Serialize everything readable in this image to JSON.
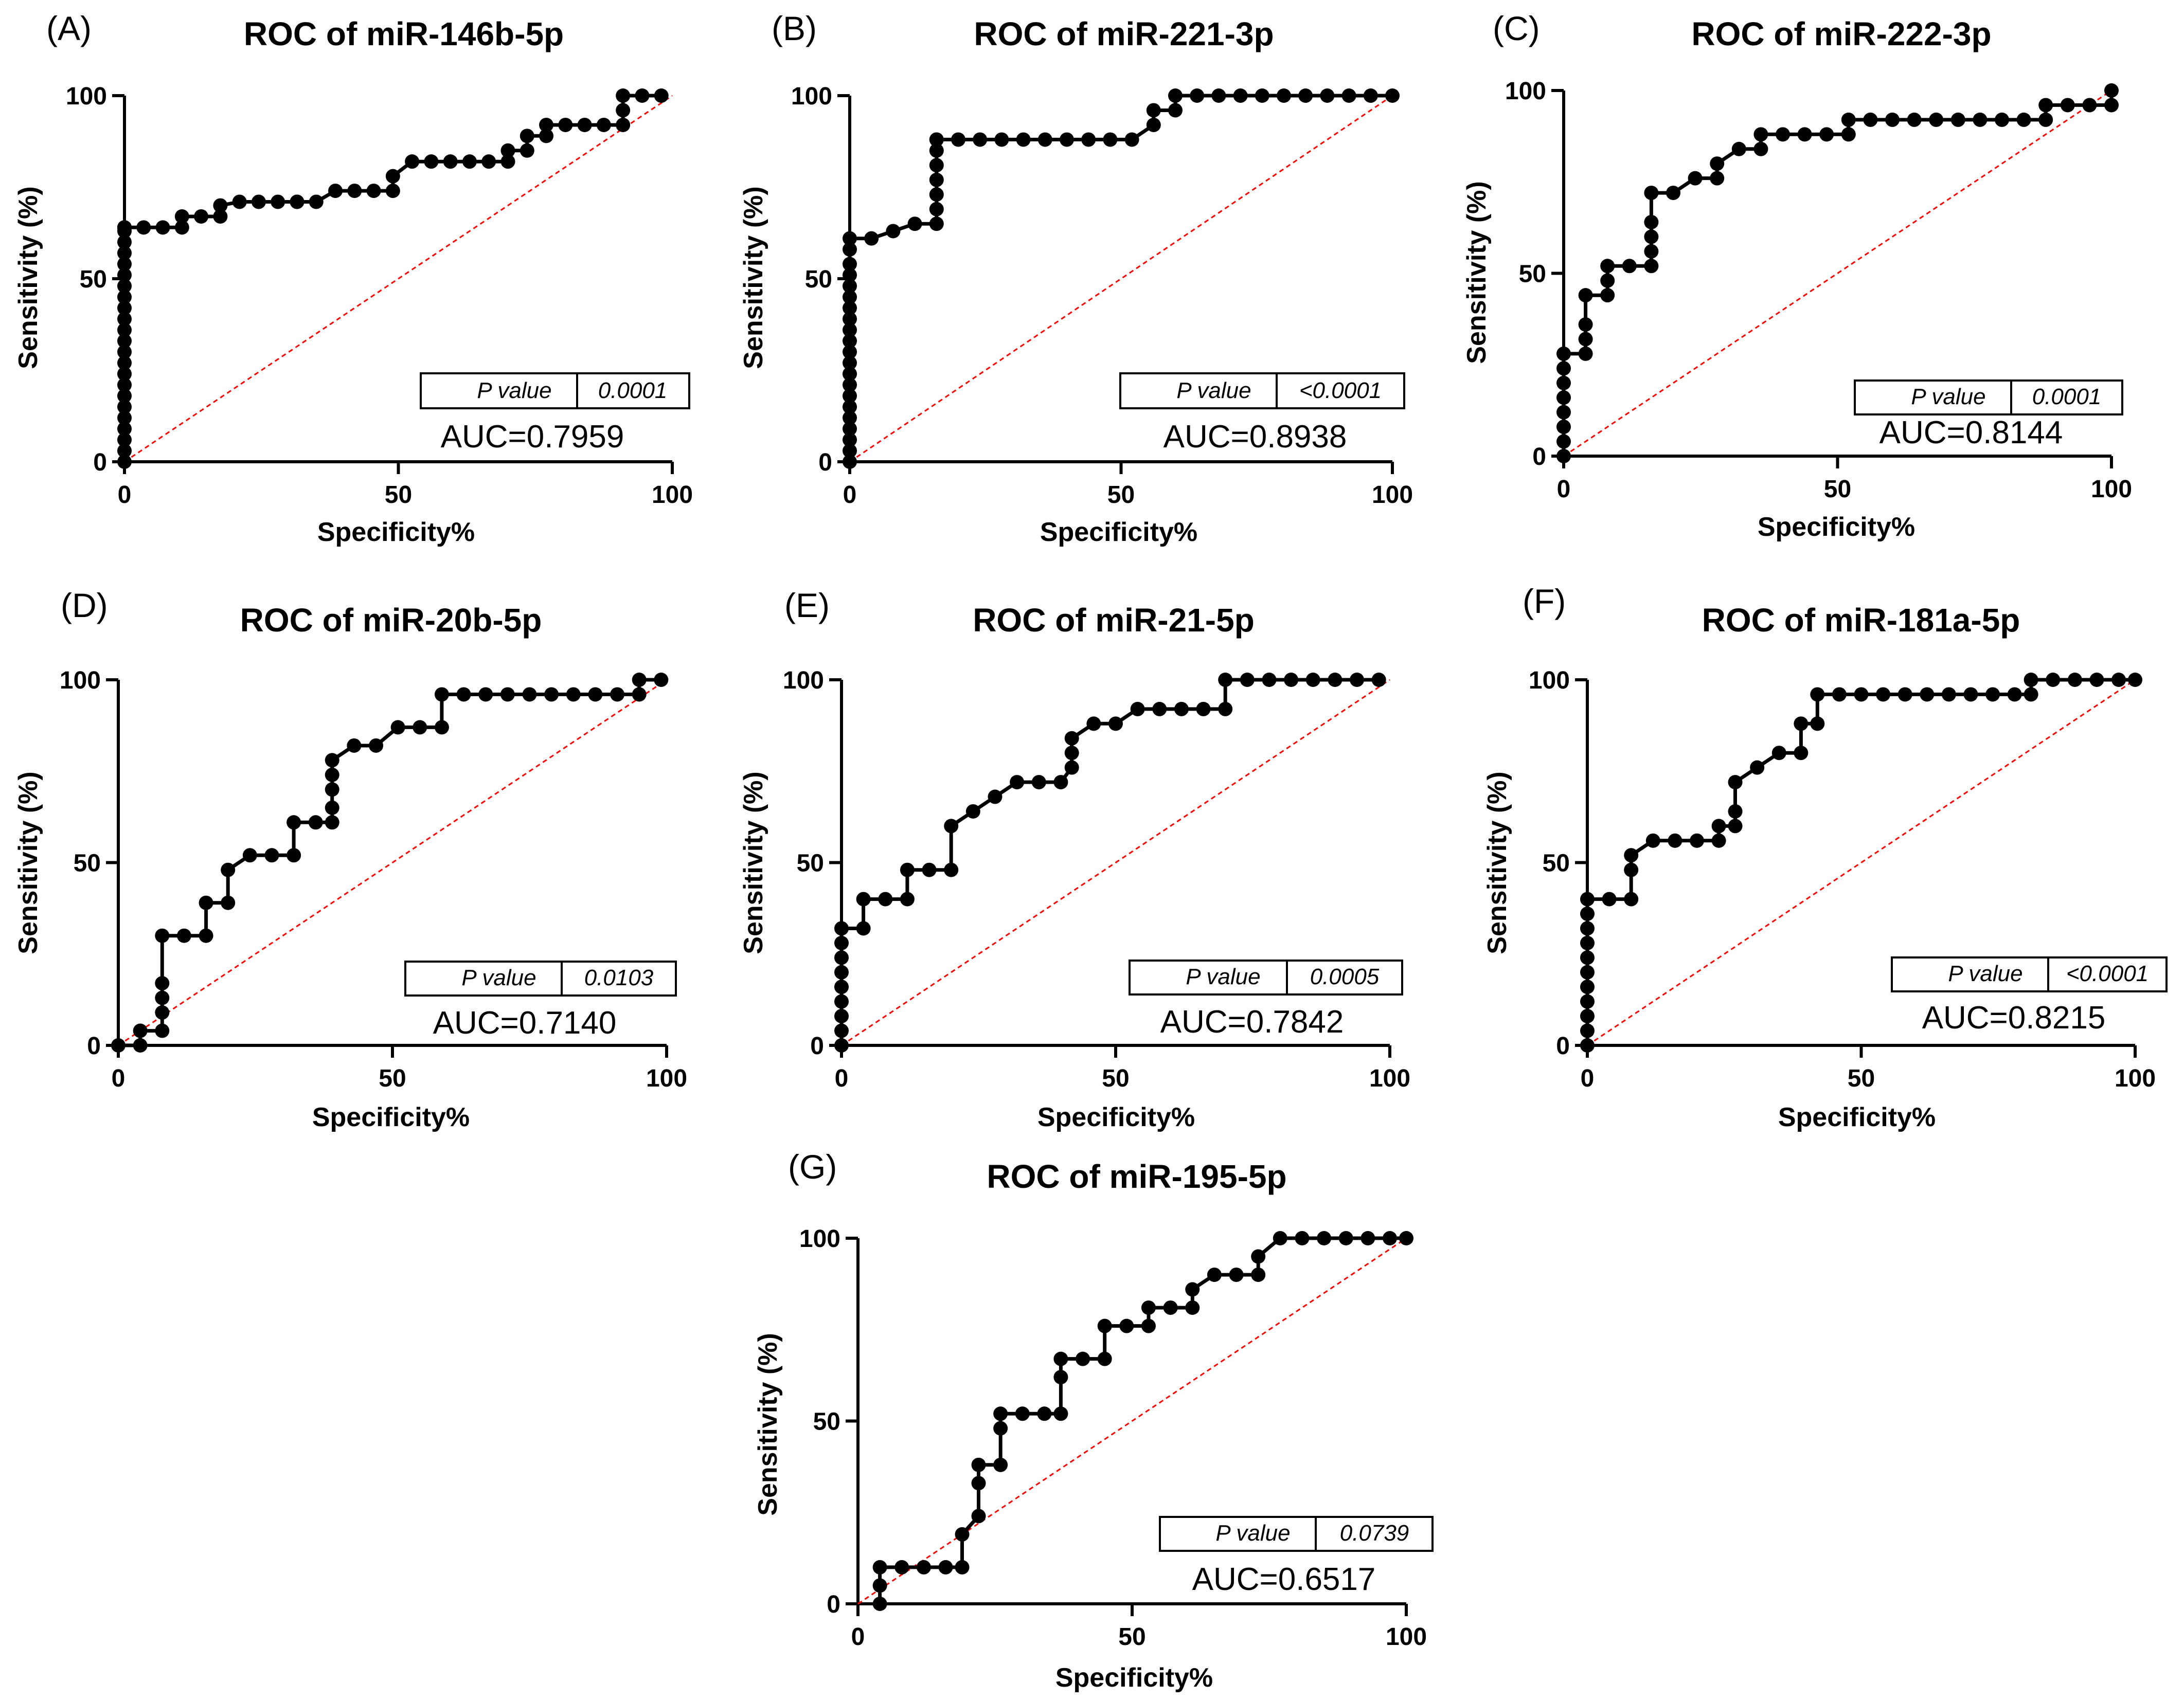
{
  "figure": {
    "background": "#ffffff",
    "point_color": "#000000",
    "diagonal_color": "#ff0000"
  },
  "chart_data": [
    {
      "id": "A",
      "type": "line",
      "panel_label": "(A)",
      "title": "ROC of miR-146b-5p",
      "xlabel": "Specificity%",
      "ylabel": "Sensitivity (%)",
      "xlim": [
        0,
        100
      ],
      "ylim": [
        0,
        100
      ],
      "xticks": [
        "0",
        "50",
        "100"
      ],
      "yticks": [
        "0",
        "50",
        "100"
      ],
      "p_value_label": "P value",
      "p_value": "0.0001",
      "auc": "AUC=0.7959",
      "series": [
        {
          "name": "ROC",
          "x": [
            0,
            0,
            0,
            0,
            0,
            0,
            0,
            0,
            0,
            0,
            0,
            0,
            0,
            0,
            0,
            0,
            0,
            0,
            0,
            0,
            0,
            0,
            0,
            0,
            0,
            0,
            0,
            3.5,
            7,
            10.5,
            10.5,
            14,
            17.5,
            17.5,
            21,
            24.5,
            28,
            31.5,
            31.5,
            35,
            38.5,
            42,
            45.5,
            49,
            49,
            52.5,
            56,
            59.5,
            63,
            66.5,
            70,
            70,
            73.5,
            73.5,
            77,
            77,
            80.5,
            84,
            87.5,
            91,
            91,
            91,
            94.5,
            98
          ],
          "y": [
            0,
            3,
            6,
            9,
            12,
            15,
            18,
            21,
            24,
            27,
            30,
            33,
            36,
            39,
            42,
            45,
            48,
            51,
            54,
            57,
            60,
            63,
            64,
            64,
            64,
            64,
            64,
            64,
            64,
            64,
            67,
            67,
            67,
            70,
            71,
            71,
            71,
            71,
            71,
            71,
            74,
            74,
            74,
            74,
            78,
            82,
            82,
            82,
            82,
            82,
            82,
            85,
            85,
            89,
            89,
            92,
            92,
            92,
            92,
            92,
            96,
            100,
            100,
            100
          ]
        }
      ]
    },
    {
      "id": "B",
      "type": "line",
      "panel_label": "(B)",
      "title": "ROC of miR-221-3p",
      "xlabel": "Specificity%",
      "ylabel": "Sensitivity (%)",
      "xlim": [
        0,
        100
      ],
      "ylim": [
        0,
        100
      ],
      "xticks": [
        "0",
        "50",
        "100"
      ],
      "yticks": [
        "0",
        "50",
        "100"
      ],
      "p_value_label": "P value",
      "p_value": "<0.0001",
      "auc": "AUC=0.8938",
      "series": [
        {
          "name": "ROC",
          "x": [
            0,
            0,
            0,
            0,
            0,
            0,
            0,
            0,
            0,
            0,
            0,
            0,
            0,
            0,
            0,
            0,
            0,
            0,
            0,
            0,
            0,
            4,
            8,
            12,
            16,
            16,
            16,
            16,
            16,
            16,
            16,
            16,
            20,
            24,
            28,
            32,
            36,
            40,
            44,
            48,
            52,
            56,
            56,
            60,
            60,
            64,
            68,
            72,
            76,
            80,
            84,
            88,
            92,
            96,
            100
          ],
          "y": [
            0,
            3,
            6,
            9,
            12,
            15,
            18,
            21,
            24,
            27,
            30,
            33,
            36,
            39,
            42,
            45,
            48,
            51,
            54,
            58,
            61,
            61,
            63,
            65,
            65,
            69,
            73,
            77,
            81,
            85,
            88,
            88,
            88,
            88,
            88,
            88,
            88,
            88,
            88,
            88,
            88,
            92,
            96,
            96,
            100,
            100,
            100,
            100,
            100,
            100,
            100,
            100,
            100,
            100,
            100
          ]
        }
      ]
    },
    {
      "id": "C",
      "type": "line",
      "panel_label": "(C)",
      "title": "ROC of miR-222-3p",
      "xlabel": "Specificity%",
      "ylabel": "Sensitivity (%)",
      "xlim": [
        0,
        100
      ],
      "ylim": [
        0,
        100
      ],
      "xticks": [
        "0",
        "50",
        "100"
      ],
      "yticks": [
        "0",
        "50",
        "100"
      ],
      "p_value_label": "P value",
      "p_value": "0.0001",
      "auc": "AUC=0.8144",
      "series": [
        {
          "name": "ROC",
          "x": [
            0,
            0,
            0,
            0,
            0,
            0,
            0,
            0,
            4,
            4,
            4,
            4,
            8,
            8,
            8,
            12,
            16,
            16,
            16,
            16,
            16,
            20,
            24,
            28,
            28,
            32,
            36,
            36,
            40,
            44,
            48,
            52,
            52,
            56,
            60,
            64,
            68,
            72,
            76,
            80,
            84,
            88,
            88,
            92,
            96,
            100,
            100
          ],
          "y": [
            0,
            4,
            8,
            12,
            16,
            20,
            24,
            28,
            28,
            32,
            36,
            44,
            44,
            48,
            52,
            52,
            52,
            56,
            60,
            64,
            72,
            72,
            76,
            76,
            80,
            84,
            84,
            88,
            88,
            88,
            88,
            88,
            92,
            92,
            92,
            92,
            92,
            92,
            92,
            92,
            92,
            92,
            96,
            96,
            96,
            96,
            100
          ]
        }
      ]
    },
    {
      "id": "D",
      "type": "line",
      "panel_label": "(D)",
      "title": "ROC of miR-20b-5p",
      "xlabel": "Specificity%",
      "ylabel": "Sensitivity (%)",
      "xlim": [
        0,
        100
      ],
      "ylim": [
        0,
        100
      ],
      "xticks": [
        "0",
        "50",
        "100"
      ],
      "yticks": [
        "0",
        "50",
        "100"
      ],
      "p_value_label": "P value",
      "p_value": "0.0103",
      "auc": "AUC=0.7140",
      "series": [
        {
          "name": "ROC",
          "x": [
            0,
            4,
            4,
            8,
            8,
            8,
            8,
            8,
            12,
            16,
            16,
            20,
            20,
            24,
            28,
            32,
            32,
            36,
            39,
            39,
            39,
            39,
            39,
            43,
            47,
            51,
            55,
            59,
            59,
            63,
            67,
            71,
            75,
            79,
            83,
            87,
            91,
            95,
            95,
            99
          ],
          "y": [
            0,
            0,
            4,
            4,
            9,
            13,
            17,
            30,
            30,
            30,
            39,
            39,
            48,
            52,
            52,
            52,
            61,
            61,
            61,
            65,
            70,
            74,
            78,
            82,
            82,
            87,
            87,
            87,
            96,
            96,
            96,
            96,
            96,
            96,
            96,
            96,
            96,
            96,
            100,
            100
          ]
        }
      ]
    },
    {
      "id": "E",
      "type": "line",
      "panel_label": "(E)",
      "title": "ROC of miR-21-5p",
      "xlabel": "Specificity%",
      "ylabel": "Sensitivity (%)",
      "xlim": [
        0,
        100
      ],
      "ylim": [
        0,
        100
      ],
      "xticks": [
        "0",
        "50",
        "100"
      ],
      "yticks": [
        "0",
        "50",
        "100"
      ],
      "p_value_label": "P value",
      "p_value": "0.0005",
      "auc": "AUC=0.7842",
      "series": [
        {
          "name": "ROC",
          "x": [
            0,
            0,
            0,
            0,
            0,
            0,
            0,
            0,
            0,
            4,
            4,
            8,
            12,
            12,
            16,
            20,
            20,
            24,
            28,
            32,
            36,
            40,
            42,
            42,
            42,
            46,
            50,
            54,
            58,
            62,
            66,
            70,
            70,
            74,
            78,
            82,
            86,
            90,
            94,
            98
          ],
          "y": [
            0,
            4,
            8,
            12,
            16,
            20,
            24,
            28,
            32,
            32,
            40,
            40,
            40,
            48,
            48,
            48,
            60,
            64,
            68,
            72,
            72,
            72,
            76,
            80,
            84,
            88,
            88,
            92,
            92,
            92,
            92,
            92,
            100,
            100,
            100,
            100,
            100,
            100,
            100,
            100
          ]
        }
      ]
    },
    {
      "id": "F",
      "type": "line",
      "panel_label": "(F)",
      "title": "ROC of miR-181a-5p",
      "xlabel": "Specificity%",
      "ylabel": "Sensitivity (%)",
      "xlim": [
        0,
        100
      ],
      "ylim": [
        0,
        100
      ],
      "xticks": [
        "0",
        "50",
        "100"
      ],
      "yticks": [
        "0",
        "50",
        "100"
      ],
      "p_value_label": "P value",
      "p_value": "<0.0001",
      "auc": "AUC=0.8215",
      "series": [
        {
          "name": "ROC",
          "x": [
            0,
            0,
            0,
            0,
            0,
            0,
            0,
            0,
            0,
            0,
            0,
            4,
            8,
            8,
            8,
            12,
            16,
            20,
            24,
            24,
            27,
            27,
            27,
            31,
            35,
            39,
            39,
            42,
            42,
            46,
            50,
            54,
            58,
            62,
            66,
            70,
            74,
            78,
            81,
            81,
            85,
            89,
            93,
            97,
            100
          ],
          "y": [
            0,
            4,
            8,
            12,
            16,
            20,
            24,
            28,
            32,
            36,
            40,
            40,
            40,
            48,
            52,
            56,
            56,
            56,
            56,
            60,
            60,
            64,
            72,
            76,
            80,
            80,
            88,
            88,
            96,
            96,
            96,
            96,
            96,
            96,
            96,
            96,
            96,
            96,
            96,
            100,
            100,
            100,
            100,
            100,
            100
          ]
        }
      ]
    },
    {
      "id": "G",
      "type": "line",
      "panel_label": "(G)",
      "title": "ROC of miR-195-5p",
      "xlabel": "Specificity%",
      "ylabel": "Sensitivity (%)",
      "xlim": [
        0,
        100
      ],
      "ylim": [
        0,
        100
      ],
      "xticks": [
        "0",
        "50",
        "100"
      ],
      "yticks": [
        "0",
        "50",
        "100"
      ],
      "p_value_label": "P value",
      "p_value": "0.0739",
      "auc": "AUC=0.6517",
      "series": [
        {
          "name": "ROC",
          "x": [
            4,
            4,
            4,
            8,
            12,
            16,
            19,
            19,
            22,
            22,
            22,
            26,
            26,
            26,
            30,
            34,
            37,
            37,
            37,
            41,
            45,
            45,
            49,
            53,
            53,
            57,
            61,
            61,
            65,
            69,
            73,
            73,
            77,
            81,
            85,
            89,
            93,
            97,
            100
          ],
          "y": [
            0,
            5,
            10,
            10,
            10,
            10,
            10,
            19,
            24,
            33,
            38,
            38,
            48,
            52,
            52,
            52,
            52,
            62,
            67,
            67,
            67,
            76,
            76,
            76,
            81,
            81,
            81,
            86,
            90,
            90,
            90,
            95,
            100,
            100,
            100,
            100,
            100,
            100,
            100
          ]
        }
      ]
    }
  ]
}
